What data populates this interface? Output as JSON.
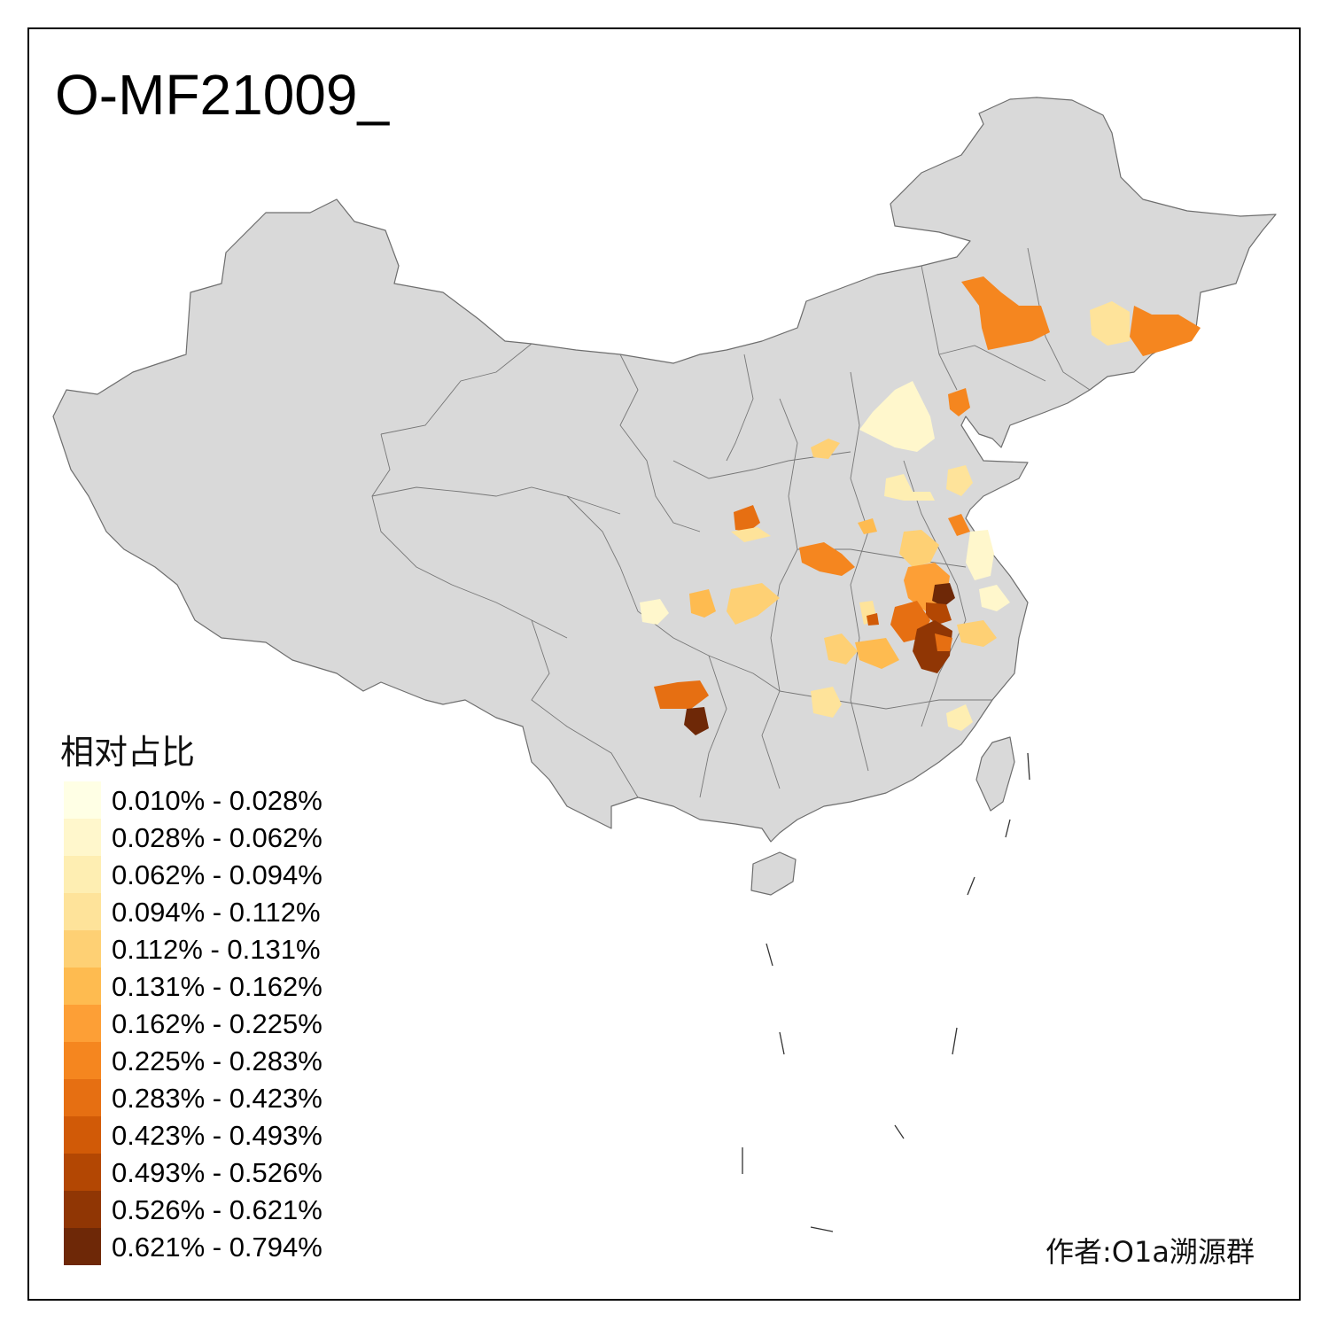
{
  "title": "O-MF21009_",
  "legend": {
    "title": "相对占比",
    "items": [
      {
        "label": "0.010% - 0.028%",
        "color": "#ffffe5"
      },
      {
        "label": "0.028% - 0.062%",
        "color": "#fff7cc"
      },
      {
        "label": "0.062% - 0.094%",
        "color": "#feeeb2"
      },
      {
        "label": "0.094% - 0.112%",
        "color": "#fee39a"
      },
      {
        "label": "0.112% - 0.131%",
        "color": "#fed074"
      },
      {
        "label": "0.131% - 0.162%",
        "color": "#febb50"
      },
      {
        "label": "0.162% - 0.225%",
        "color": "#fd9f36"
      },
      {
        "label": "0.225% - 0.283%",
        "color": "#f5861f"
      },
      {
        "label": "0.283% - 0.423%",
        "color": "#e66f12"
      },
      {
        "label": "0.423% - 0.493%",
        "color": "#d15a07"
      },
      {
        "label": "0.493% - 0.526%",
        "color": "#b34703"
      },
      {
        "label": "0.526% - 0.621%",
        "color": "#903604"
      },
      {
        "label": "0.621% - 0.794%",
        "color": "#6e2807"
      }
    ]
  },
  "credit": "作者:O1a溯源群",
  "map": {
    "base_color": "#d9d9d9",
    "border_color": "#6e6e6e"
  }
}
